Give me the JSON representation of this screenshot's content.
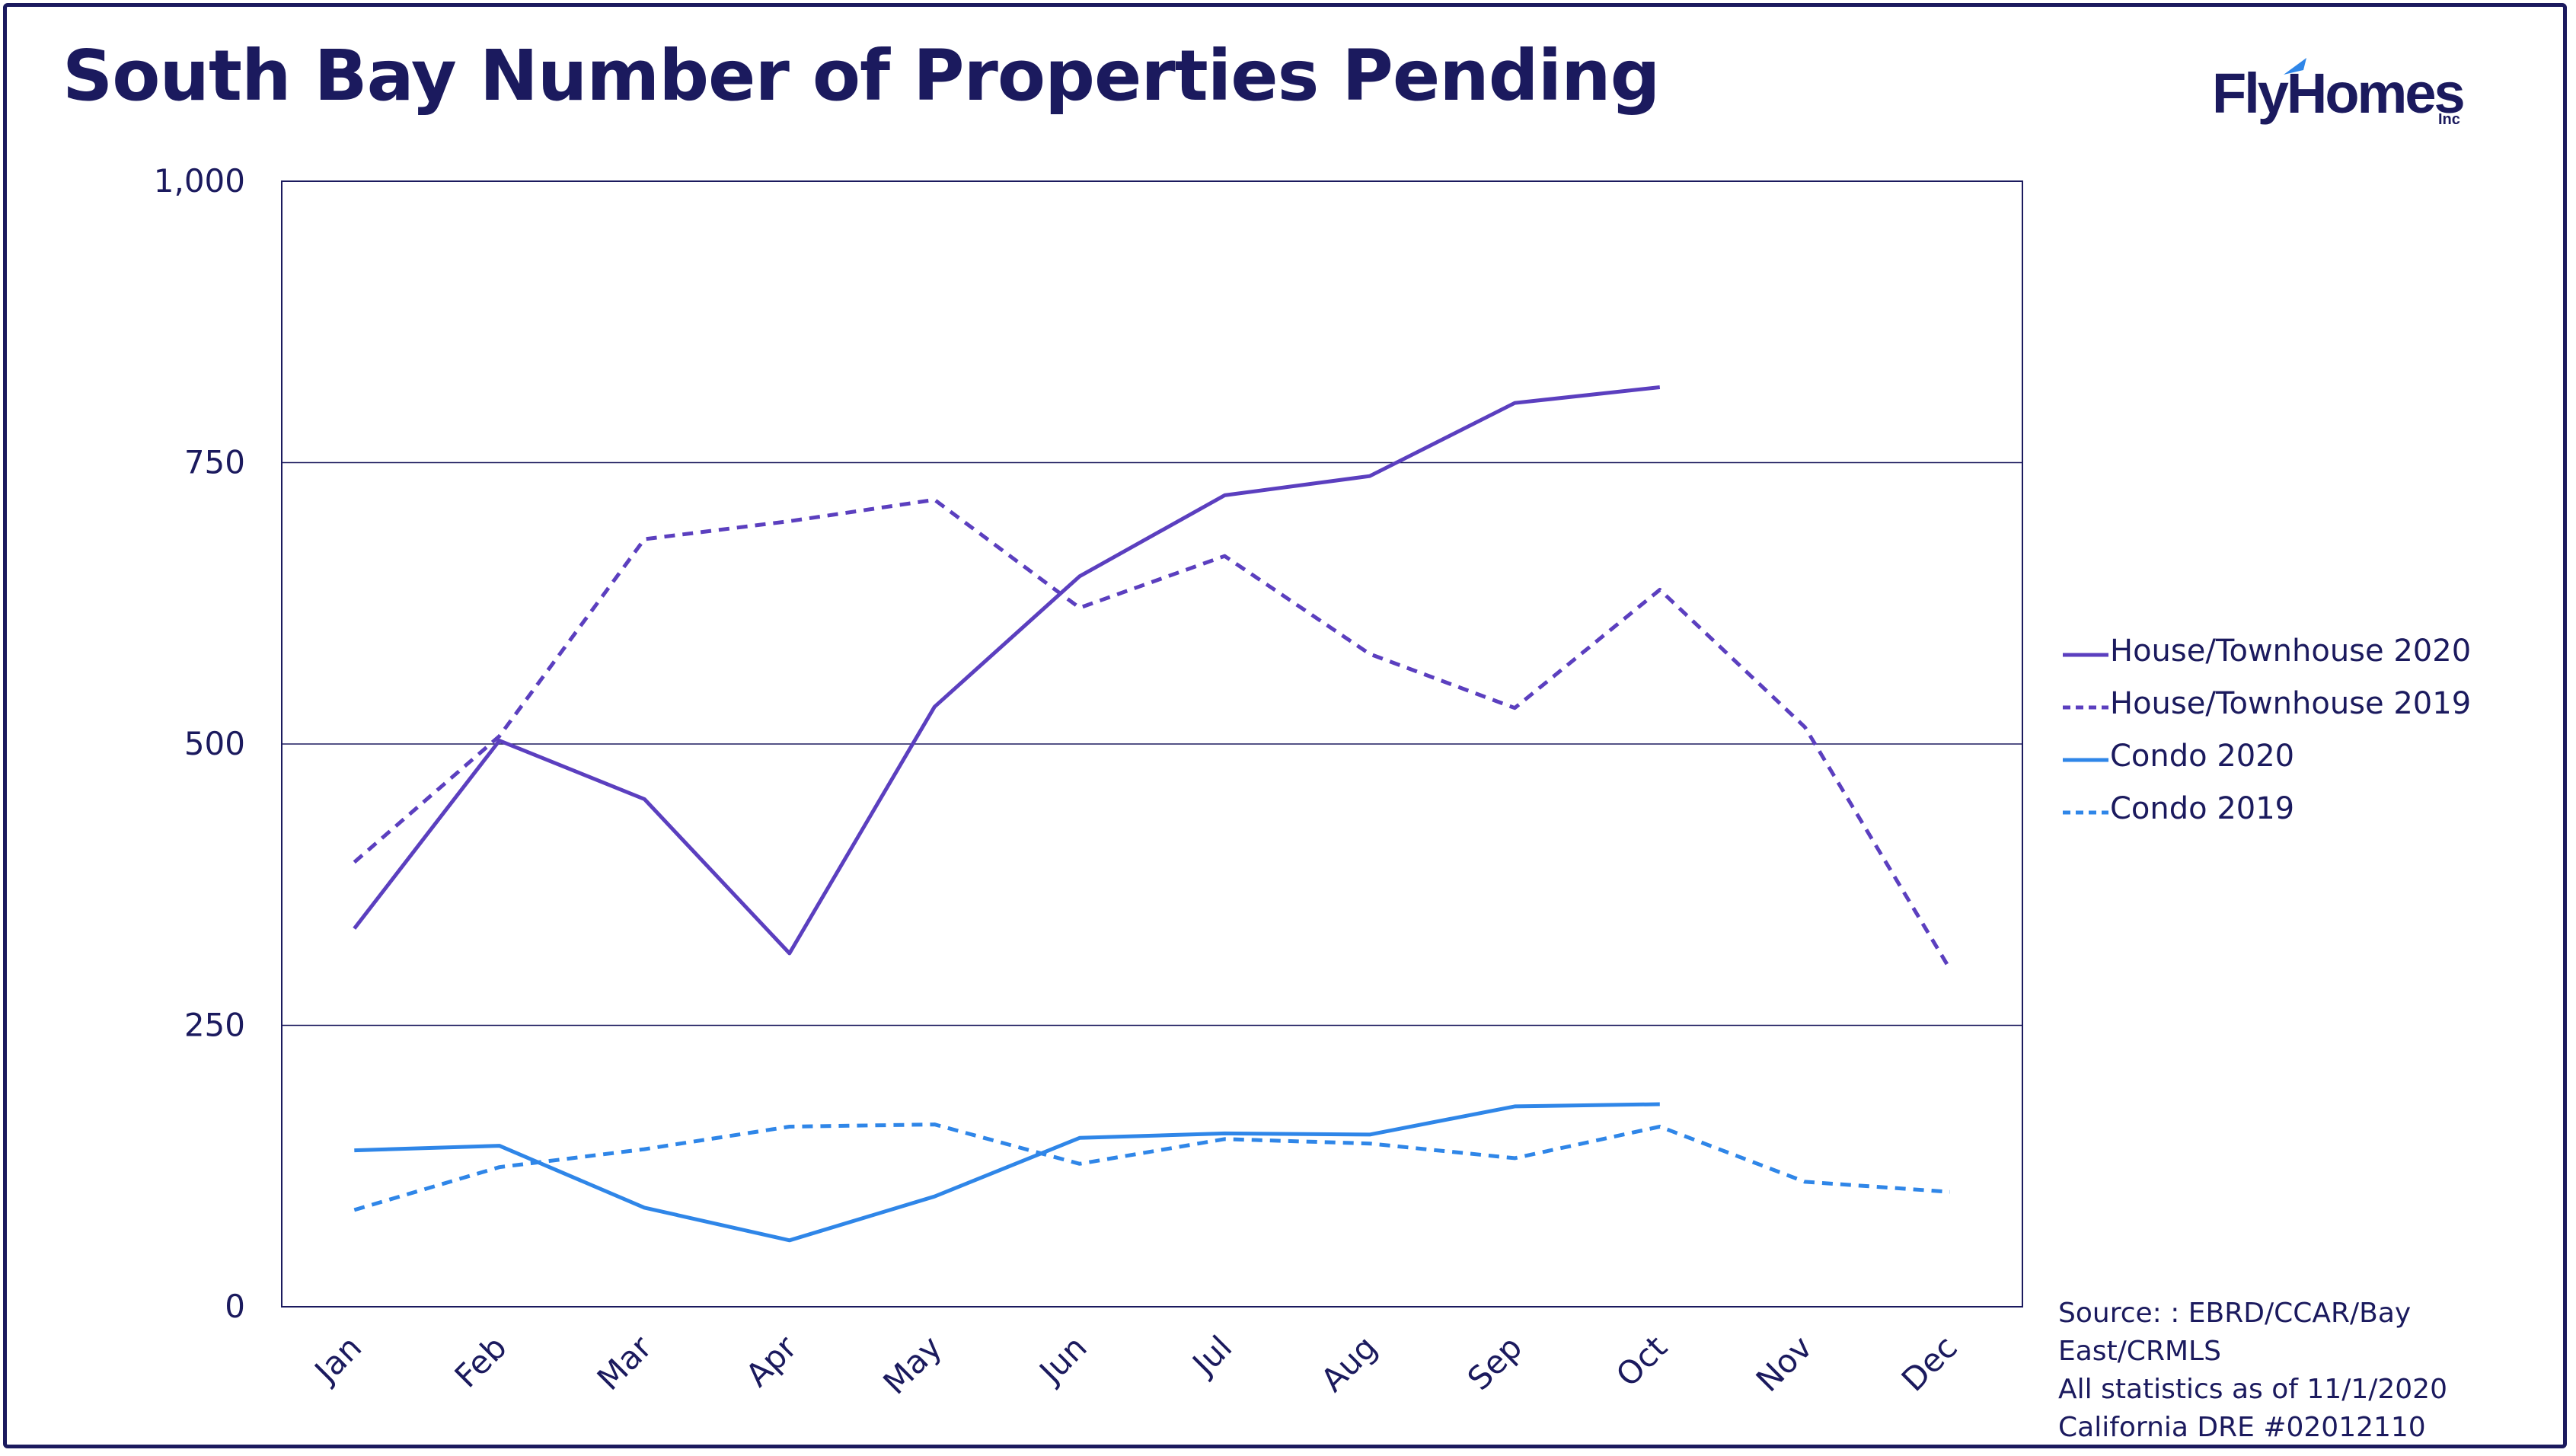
{
  "title": "South Bay Number of Properties Pending",
  "logo": {
    "name": "FlyHomes",
    "suffix": "Inc"
  },
  "colors": {
    "navy": "#1b1a5e",
    "purple": "#5b3fbf",
    "blue": "#2f86e8"
  },
  "source": {
    "line1": "Source: : EBRD/CCAR/Bay East/CRMLS",
    "line2": "All statistics as of 11/1/2020",
    "line3": "California DRE #02012110"
  },
  "chart_data": {
    "type": "line",
    "title": "South Bay Number of Properties Pending",
    "xlabel": "",
    "ylabel": "",
    "categories": [
      "Jan",
      "Feb",
      "Mar",
      "Apr",
      "May",
      "Jun",
      "Jul",
      "Aug",
      "Sep",
      "Oct",
      "Nov",
      "Dec"
    ],
    "ylim": [
      0,
      1000
    ],
    "yticks": [
      "0",
      "250",
      "500",
      "750",
      "1,000"
    ],
    "grid": "horizontal",
    "legend_position": "right",
    "series": [
      {
        "name": "House/Townhouse 2020",
        "color": "#5b3fbf",
        "style": "solid",
        "values": [
          336,
          503,
          451,
          314,
          533,
          649,
          721,
          738,
          803,
          817,
          null,
          null
        ]
      },
      {
        "name": "House/Townhouse 2019",
        "color": "#5b3fbf",
        "style": "dashed",
        "values": [
          395,
          507,
          682,
          698,
          717,
          621,
          667,
          580,
          532,
          637,
          515,
          300
        ]
      },
      {
        "name": "Condo 2020",
        "color": "#2f86e8",
        "style": "solid",
        "values": [
          139,
          143,
          88,
          59,
          98,
          150,
          154,
          153,
          178,
          180,
          null,
          null
        ]
      },
      {
        "name": "Condo 2019",
        "color": "#2f86e8",
        "style": "dashed",
        "values": [
          86,
          124,
          140,
          160,
          162,
          127,
          149,
          145,
          132,
          160,
          111,
          102
        ]
      }
    ]
  }
}
